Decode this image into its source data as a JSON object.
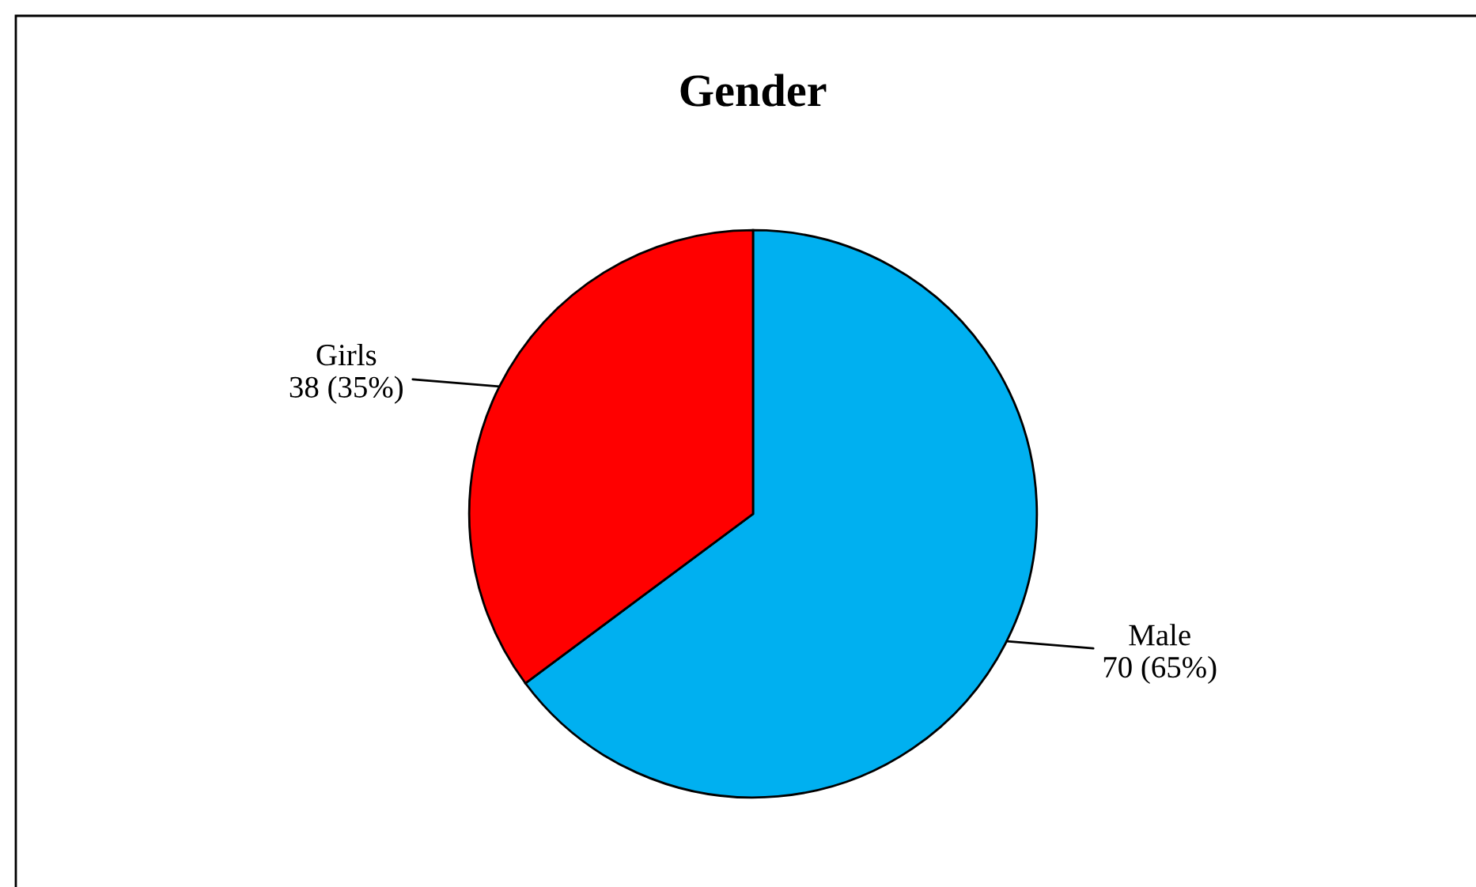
{
  "chart_data": {
    "type": "pie",
    "title": "Gender",
    "categories": [
      "Male",
      "Girls"
    ],
    "values": [
      70,
      38
    ],
    "colors": [
      "#00b0f0",
      "#ff0000"
    ],
    "value_labels": [
      "70 (65%)",
      "38 (35%)"
    ],
    "legend": false
  }
}
